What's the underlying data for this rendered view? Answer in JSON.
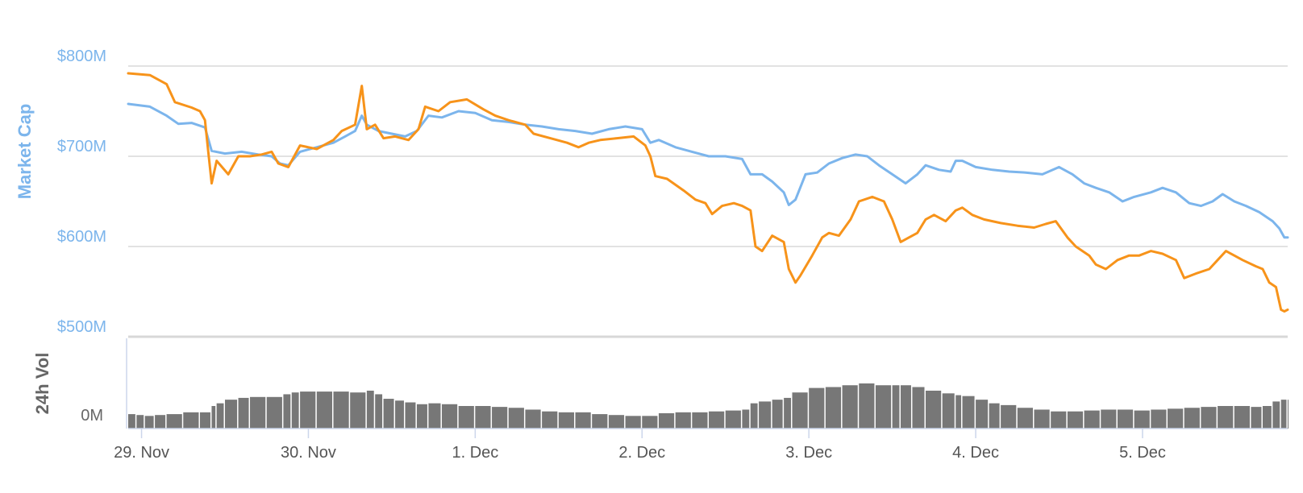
{
  "chart_data": {
    "type": "line",
    "colors": {
      "series_a": "#7cb5ec",
      "series_b": "#f7931a",
      "volume": "#777777",
      "grid": "#d8d8d8",
      "axis": "#ccd6eb"
    },
    "price_panel": {
      "ytitle": "Market Cap",
      "yticks": [
        "$500M",
        "$600M",
        "$700M",
        "$800M"
      ],
      "yrange": [
        500,
        800
      ],
      "grid": true
    },
    "volume_panel": {
      "ytitle": "24h Vol",
      "yticks": [
        "0M"
      ],
      "yrange": [
        0,
        100
      ]
    },
    "x_axis": {
      "range": [
        28.92,
        35.87
      ],
      "ticks": [
        {
          "label": "29. Nov",
          "x": 29
        },
        {
          "label": "30. Nov",
          "x": 30
        },
        {
          "label": "1. Dec",
          "x": 31
        },
        {
          "label": "2. Dec",
          "x": 32
        },
        {
          "label": "3. Dec",
          "x": 33
        },
        {
          "label": "4. Dec",
          "x": 34
        },
        {
          "label": "5. Dec",
          "x": 35
        }
      ]
    },
    "series": [
      {
        "key": "a",
        "points": [
          [
            28.92,
            758
          ],
          [
            29.05,
            755
          ],
          [
            29.15,
            745
          ],
          [
            29.22,
            736
          ],
          [
            29.3,
            737
          ],
          [
            29.38,
            732
          ],
          [
            29.42,
            706
          ],
          [
            29.5,
            703
          ],
          [
            29.6,
            705
          ],
          [
            29.7,
            702
          ],
          [
            29.78,
            700
          ],
          [
            29.83,
            692
          ],
          [
            29.88,
            690
          ],
          [
            29.95,
            705
          ],
          [
            30.05,
            710
          ],
          [
            30.15,
            715
          ],
          [
            30.22,
            722
          ],
          [
            30.28,
            728
          ],
          [
            30.32,
            745
          ],
          [
            30.35,
            735
          ],
          [
            30.42,
            728
          ],
          [
            30.5,
            725
          ],
          [
            30.58,
            722
          ],
          [
            30.65,
            728
          ],
          [
            30.72,
            745
          ],
          [
            30.8,
            743
          ],
          [
            30.9,
            750
          ],
          [
            31.0,
            748
          ],
          [
            31.1,
            740
          ],
          [
            31.2,
            738
          ],
          [
            31.3,
            735
          ],
          [
            31.4,
            733
          ],
          [
            31.5,
            730
          ],
          [
            31.6,
            728
          ],
          [
            31.7,
            725
          ],
          [
            31.8,
            730
          ],
          [
            31.9,
            733
          ],
          [
            32.0,
            730
          ],
          [
            32.05,
            715
          ],
          [
            32.1,
            718
          ],
          [
            32.2,
            710
          ],
          [
            32.3,
            705
          ],
          [
            32.4,
            700
          ],
          [
            32.5,
            700
          ],
          [
            32.6,
            697
          ],
          [
            32.65,
            680
          ],
          [
            32.72,
            680
          ],
          [
            32.78,
            672
          ],
          [
            32.85,
            660
          ],
          [
            32.88,
            646
          ],
          [
            32.92,
            652
          ],
          [
            32.98,
            680
          ],
          [
            33.05,
            682
          ],
          [
            33.12,
            692
          ],
          [
            33.2,
            698
          ],
          [
            33.28,
            702
          ],
          [
            33.35,
            700
          ],
          [
            33.42,
            690
          ],
          [
            33.5,
            680
          ],
          [
            33.58,
            670
          ],
          [
            33.65,
            680
          ],
          [
            33.7,
            690
          ],
          [
            33.78,
            685
          ],
          [
            33.85,
            683
          ],
          [
            33.88,
            695
          ],
          [
            33.92,
            695
          ],
          [
            34.0,
            688
          ],
          [
            34.1,
            685
          ],
          [
            34.2,
            683
          ],
          [
            34.3,
            682
          ],
          [
            34.4,
            680
          ],
          [
            34.5,
            688
          ],
          [
            34.58,
            680
          ],
          [
            34.65,
            670
          ],
          [
            34.72,
            665
          ],
          [
            34.8,
            660
          ],
          [
            34.88,
            650
          ],
          [
            34.95,
            655
          ],
          [
            35.05,
            660
          ],
          [
            35.12,
            665
          ],
          [
            35.2,
            660
          ],
          [
            35.28,
            648
          ],
          [
            35.35,
            645
          ],
          [
            35.42,
            650
          ],
          [
            35.48,
            658
          ],
          [
            35.55,
            650
          ],
          [
            35.62,
            645
          ],
          [
            35.7,
            638
          ],
          [
            35.78,
            628
          ],
          [
            35.82,
            620
          ],
          [
            35.85,
            610
          ],
          [
            35.87,
            610
          ]
        ]
      },
      {
        "key": "b",
        "points": [
          [
            28.92,
            792
          ],
          [
            29.05,
            790
          ],
          [
            29.15,
            780
          ],
          [
            29.2,
            760
          ],
          [
            29.3,
            754
          ],
          [
            29.35,
            750
          ],
          [
            29.38,
            740
          ],
          [
            29.4,
            705
          ],
          [
            29.42,
            670
          ],
          [
            29.45,
            695
          ],
          [
            29.52,
            680
          ],
          [
            29.58,
            700
          ],
          [
            29.65,
            700
          ],
          [
            29.72,
            702
          ],
          [
            29.78,
            705
          ],
          [
            29.82,
            692
          ],
          [
            29.88,
            688
          ],
          [
            29.95,
            712
          ],
          [
            30.05,
            708
          ],
          [
            30.15,
            718
          ],
          [
            30.2,
            728
          ],
          [
            30.28,
            735
          ],
          [
            30.32,
            778
          ],
          [
            30.35,
            730
          ],
          [
            30.4,
            735
          ],
          [
            30.45,
            720
          ],
          [
            30.52,
            722
          ],
          [
            30.6,
            718
          ],
          [
            30.66,
            730
          ],
          [
            30.7,
            755
          ],
          [
            30.78,
            750
          ],
          [
            30.85,
            760
          ],
          [
            30.95,
            763
          ],
          [
            31.05,
            752
          ],
          [
            31.12,
            745
          ],
          [
            31.2,
            740
          ],
          [
            31.3,
            735
          ],
          [
            31.35,
            725
          ],
          [
            31.45,
            720
          ],
          [
            31.55,
            715
          ],
          [
            31.62,
            710
          ],
          [
            31.68,
            715
          ],
          [
            31.75,
            718
          ],
          [
            31.85,
            720
          ],
          [
            31.95,
            722
          ],
          [
            32.02,
            712
          ],
          [
            32.05,
            700
          ],
          [
            32.08,
            678
          ],
          [
            32.15,
            675
          ],
          [
            32.25,
            662
          ],
          [
            32.32,
            652
          ],
          [
            32.38,
            648
          ],
          [
            32.42,
            636
          ],
          [
            32.48,
            645
          ],
          [
            32.55,
            648
          ],
          [
            32.6,
            645
          ],
          [
            32.65,
            640
          ],
          [
            32.68,
            600
          ],
          [
            32.72,
            595
          ],
          [
            32.78,
            612
          ],
          [
            32.85,
            605
          ],
          [
            32.88,
            575
          ],
          [
            32.92,
            560
          ],
          [
            32.95,
            568
          ],
          [
            33.02,
            590
          ],
          [
            33.08,
            610
          ],
          [
            33.12,
            615
          ],
          [
            33.18,
            612
          ],
          [
            33.25,
            630
          ],
          [
            33.3,
            650
          ],
          [
            33.38,
            655
          ],
          [
            33.45,
            650
          ],
          [
            33.5,
            630
          ],
          [
            33.55,
            605
          ],
          [
            33.6,
            610
          ],
          [
            33.65,
            615
          ],
          [
            33.7,
            630
          ],
          [
            33.75,
            635
          ],
          [
            33.82,
            628
          ],
          [
            33.88,
            640
          ],
          [
            33.92,
            643
          ],
          [
            33.98,
            635
          ],
          [
            34.05,
            630
          ],
          [
            34.15,
            626
          ],
          [
            34.25,
            623
          ],
          [
            34.35,
            621
          ],
          [
            34.42,
            625
          ],
          [
            34.48,
            628
          ],
          [
            34.55,
            610
          ],
          [
            34.6,
            600
          ],
          [
            34.68,
            590
          ],
          [
            34.72,
            580
          ],
          [
            34.78,
            575
          ],
          [
            34.85,
            585
          ],
          [
            34.92,
            590
          ],
          [
            34.98,
            590
          ],
          [
            35.05,
            595
          ],
          [
            35.12,
            592
          ],
          [
            35.2,
            585
          ],
          [
            35.25,
            565
          ],
          [
            35.32,
            570
          ],
          [
            35.4,
            575
          ],
          [
            35.45,
            585
          ],
          [
            35.5,
            595
          ],
          [
            35.55,
            590
          ],
          [
            35.6,
            585
          ],
          [
            35.68,
            578
          ],
          [
            35.72,
            575
          ],
          [
            35.76,
            560
          ],
          [
            35.8,
            555
          ],
          [
            35.83,
            530
          ],
          [
            35.85,
            528
          ],
          [
            35.87,
            530
          ]
        ]
      }
    ],
    "volume": {
      "bars": [
        [
          28.92,
          16
        ],
        [
          28.97,
          15
        ],
        [
          29.02,
          14
        ],
        [
          29.08,
          15
        ],
        [
          29.15,
          16
        ],
        [
          29.25,
          18
        ],
        [
          29.35,
          18
        ],
        [
          29.42,
          25
        ],
        [
          29.45,
          28
        ],
        [
          29.5,
          32
        ],
        [
          29.58,
          34
        ],
        [
          29.65,
          35
        ],
        [
          29.75,
          35
        ],
        [
          29.85,
          38
        ],
        [
          29.9,
          40
        ],
        [
          29.95,
          41
        ],
        [
          30.05,
          41
        ],
        [
          30.15,
          41
        ],
        [
          30.25,
          40
        ],
        [
          30.35,
          42
        ],
        [
          30.4,
          38
        ],
        [
          30.45,
          33
        ],
        [
          30.52,
          31
        ],
        [
          30.58,
          29
        ],
        [
          30.65,
          27
        ],
        [
          30.72,
          28
        ],
        [
          30.8,
          27
        ],
        [
          30.9,
          25
        ],
        [
          31.0,
          25
        ],
        [
          31.1,
          24
        ],
        [
          31.2,
          23
        ],
        [
          31.3,
          21
        ],
        [
          31.4,
          19
        ],
        [
          31.5,
          18
        ],
        [
          31.6,
          18
        ],
        [
          31.7,
          16
        ],
        [
          31.8,
          15
        ],
        [
          31.9,
          14
        ],
        [
          32.0,
          14
        ],
        [
          32.1,
          17
        ],
        [
          32.2,
          18
        ],
        [
          32.3,
          18
        ],
        [
          32.4,
          19
        ],
        [
          32.5,
          20
        ],
        [
          32.6,
          21
        ],
        [
          32.65,
          28
        ],
        [
          32.7,
          30
        ],
        [
          32.78,
          32
        ],
        [
          32.85,
          34
        ],
        [
          32.9,
          40
        ],
        [
          33.0,
          45
        ],
        [
          33.1,
          46
        ],
        [
          33.2,
          48
        ],
        [
          33.3,
          50
        ],
        [
          33.4,
          48
        ],
        [
          33.5,
          48
        ],
        [
          33.55,
          48
        ],
        [
          33.62,
          46
        ],
        [
          33.7,
          42
        ],
        [
          33.8,
          39
        ],
        [
          33.88,
          37
        ],
        [
          33.92,
          36
        ],
        [
          34.0,
          32
        ],
        [
          34.08,
          28
        ],
        [
          34.15,
          26
        ],
        [
          34.25,
          23
        ],
        [
          34.35,
          21
        ],
        [
          34.45,
          19
        ],
        [
          34.55,
          19
        ],
        [
          34.65,
          20
        ],
        [
          34.75,
          21
        ],
        [
          34.85,
          21
        ],
        [
          34.95,
          20
        ],
        [
          35.05,
          21
        ],
        [
          35.15,
          22
        ],
        [
          35.25,
          23
        ],
        [
          35.35,
          24
        ],
        [
          35.45,
          25
        ],
        [
          35.55,
          25
        ],
        [
          35.65,
          24
        ],
        [
          35.72,
          25
        ],
        [
          35.78,
          30
        ],
        [
          35.83,
          32
        ],
        [
          35.87,
          32
        ]
      ]
    }
  }
}
